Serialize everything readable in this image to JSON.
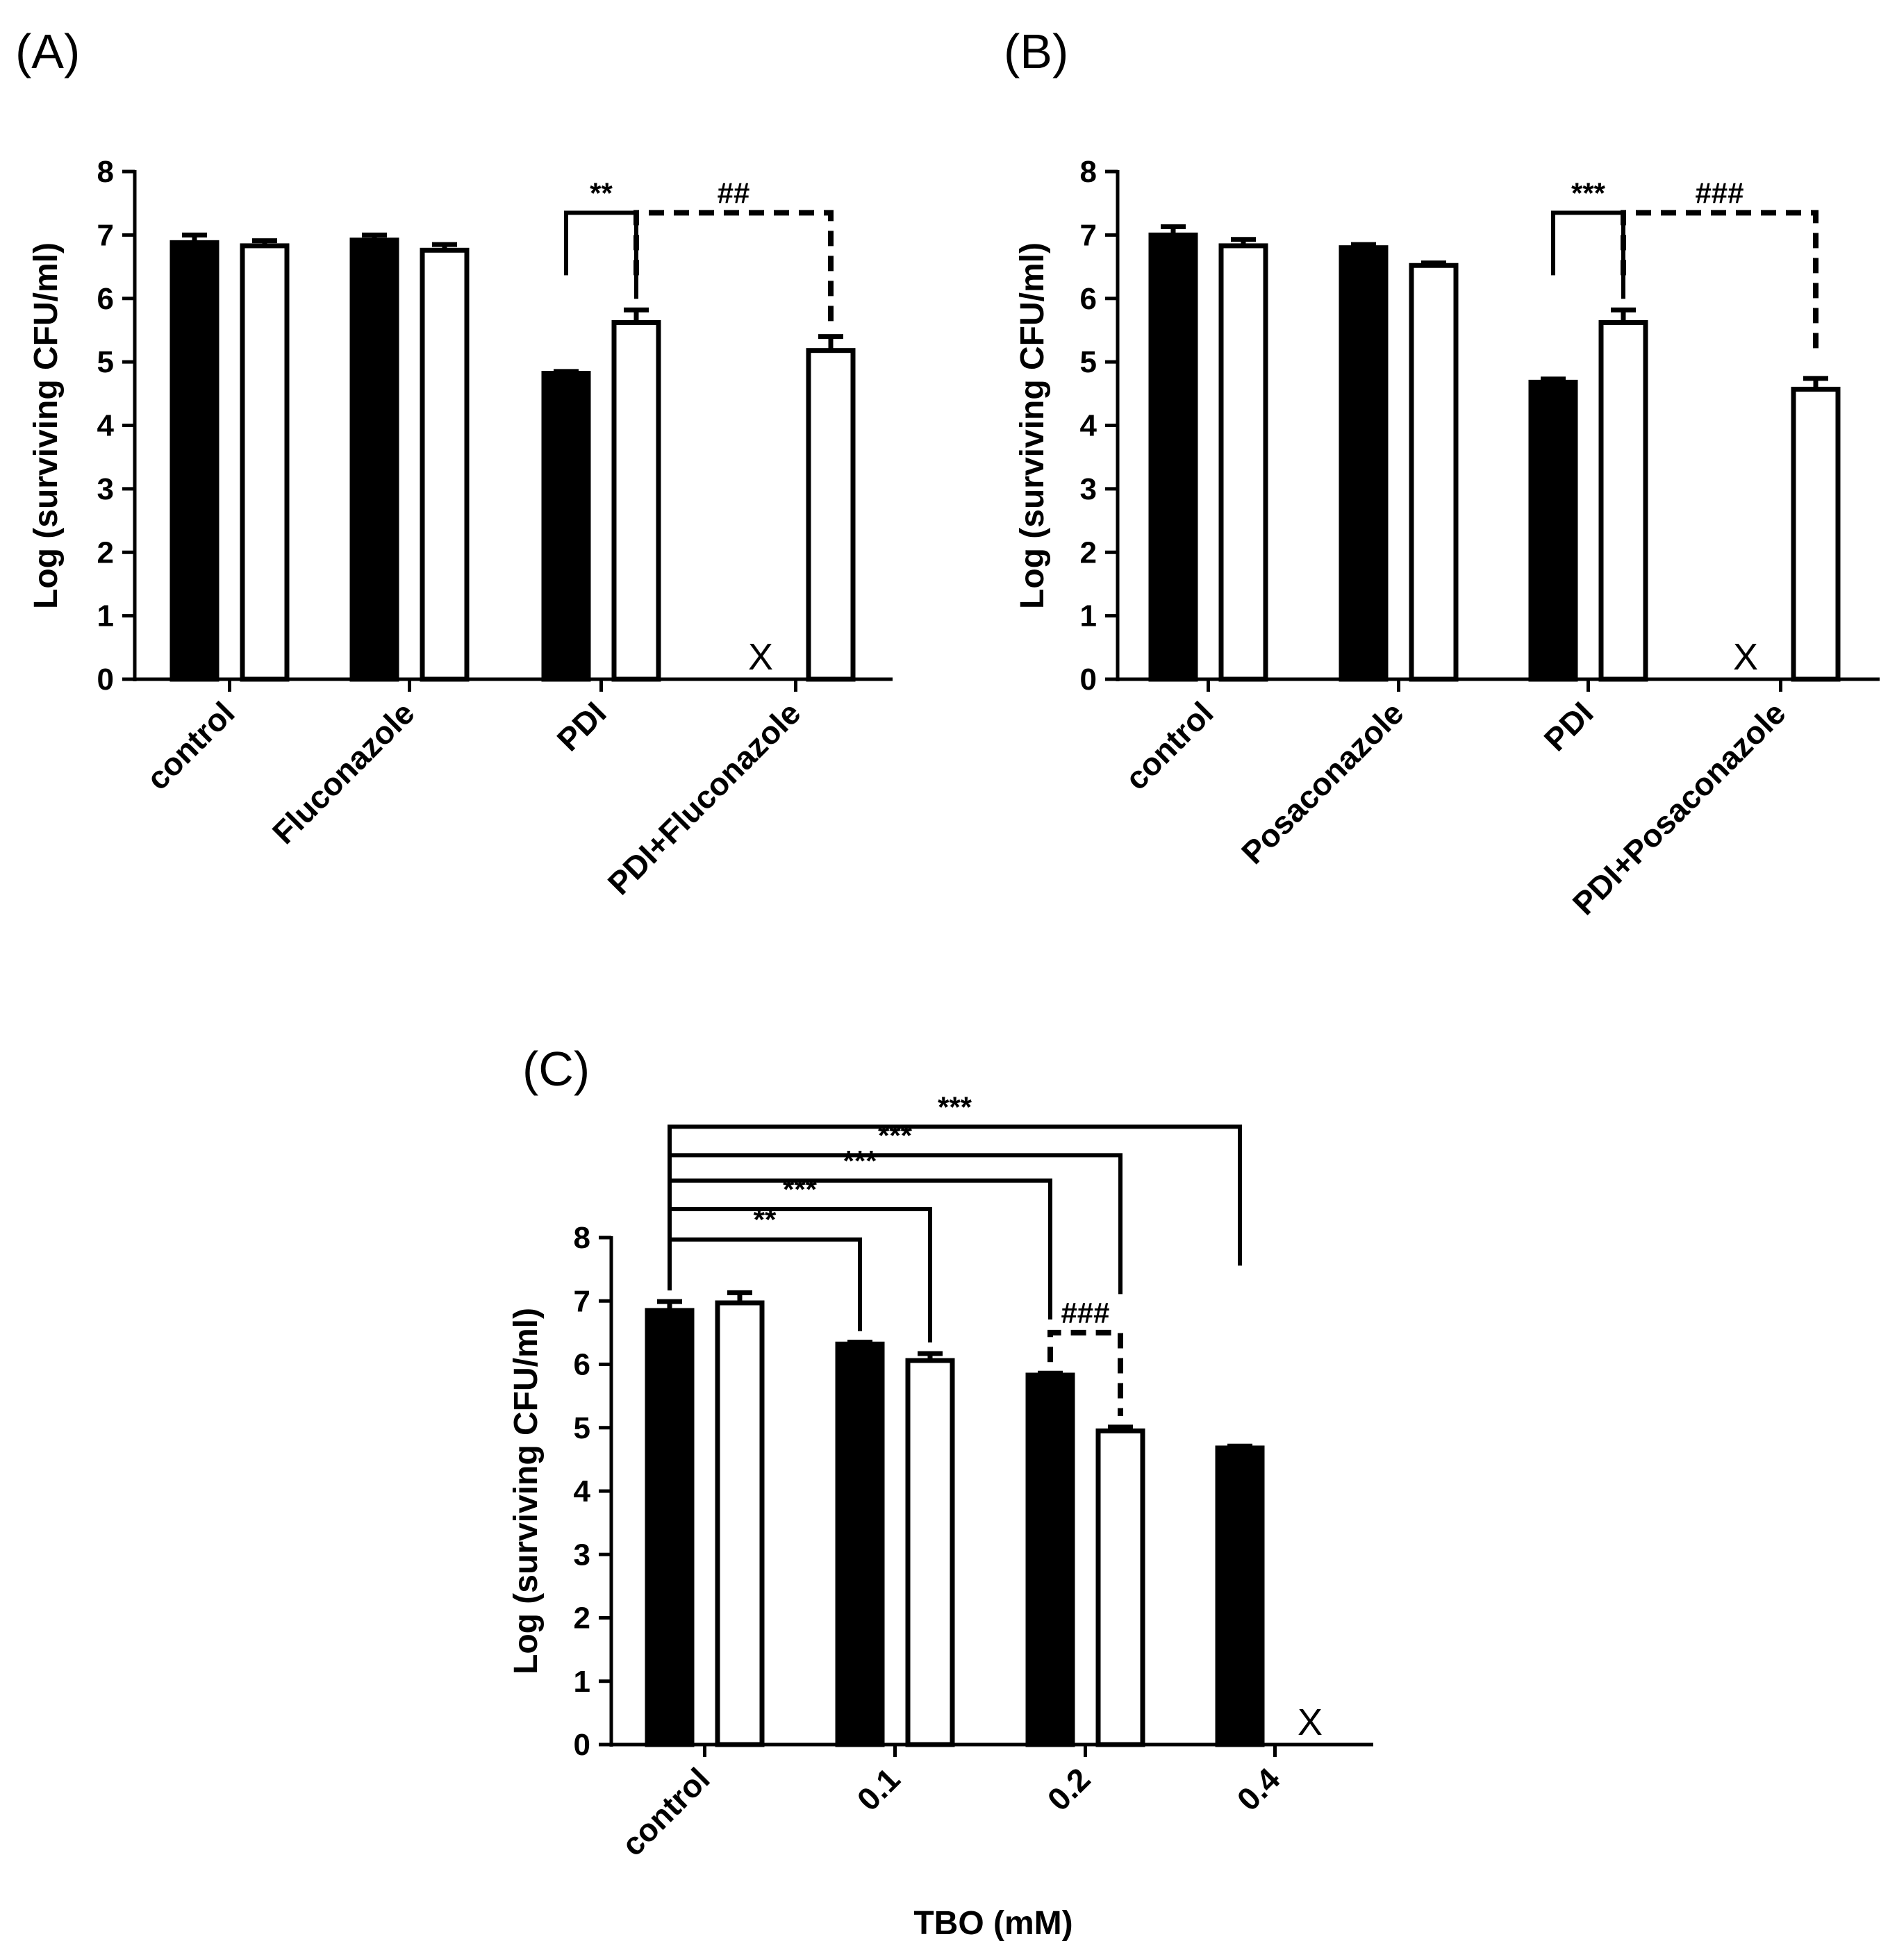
{
  "chart_data": [
    {
      "panel": "(A)",
      "type": "bar",
      "ylabel": "Log (surviving CFU/ml)",
      "xlabel": "",
      "ylim": [
        0,
        8
      ],
      "yticks": [
        "0",
        "1",
        "2",
        "3",
        "4",
        "5",
        "6",
        "7",
        "8"
      ],
      "categories": [
        "control",
        "Fluconazole",
        "PDI",
        "PDI+Fluconazole"
      ],
      "series": [
        {
          "name": "black bars",
          "fill": "#000000",
          "values": [
            6.88,
            6.92,
            4.82,
            null
          ],
          "errors": [
            0.12,
            0.08,
            0.03,
            null
          ]
        },
        {
          "name": "white bars",
          "fill": "#ffffff",
          "values": [
            6.83,
            6.76,
            5.62,
            5.18
          ],
          "errors": [
            0.08,
            0.09,
            0.2,
            0.22
          ]
        }
      ],
      "absent_marks": [
        {
          "category": 3,
          "series": 0,
          "label": "X"
        }
      ],
      "significance": [
        {
          "label": "**",
          "style": "solid",
          "from": [
            2,
            0
          ],
          "to": [
            2,
            1
          ],
          "level": 7.35
        },
        {
          "label": "##",
          "style": "dashed",
          "from": [
            2,
            1
          ],
          "to": [
            3,
            1
          ],
          "level": 7.35
        }
      ]
    },
    {
      "panel": "(B)",
      "type": "bar",
      "ylabel": "Log (surviving CFU/ml)",
      "xlabel": "",
      "ylim": [
        0,
        8
      ],
      "yticks": [
        "0",
        "1",
        "2",
        "3",
        "4",
        "5",
        "6",
        "7",
        "8"
      ],
      "categories": [
        "control",
        "Posaconazole",
        "PDI",
        "PDI+Posaconazole"
      ],
      "series": [
        {
          "name": "black bars",
          "fill": "#000000",
          "values": [
            7.0,
            6.8,
            4.68,
            null
          ],
          "errors": [
            0.13,
            0.05,
            0.05,
            null
          ]
        },
        {
          "name": "white bars",
          "fill": "#ffffff",
          "values": [
            6.83,
            6.52,
            5.62,
            4.57
          ],
          "errors": [
            0.1,
            0.04,
            0.2,
            0.17
          ]
        }
      ],
      "absent_marks": [
        {
          "category": 3,
          "series": 0,
          "label": "X"
        }
      ],
      "significance": [
        {
          "label": "***",
          "style": "solid",
          "from": [
            2,
            0
          ],
          "to": [
            2,
            1
          ],
          "level": 7.35
        },
        {
          "label": "###",
          "style": "dashed",
          "from": [
            2,
            1
          ],
          "to": [
            3,
            1
          ],
          "level": 7.35
        }
      ]
    },
    {
      "panel": "(C)",
      "type": "bar",
      "ylabel": "Log (surviving CFU/ml)",
      "xlabel": "TBO (mM)",
      "ylim": [
        0,
        8
      ],
      "yticks": [
        "0",
        "1",
        "2",
        "3",
        "4",
        "5",
        "6",
        "7",
        "8"
      ],
      "categories": [
        "control",
        "0.1",
        "0.2",
        "0.4"
      ],
      "series": [
        {
          "name": "black bars",
          "fill": "#000000",
          "values": [
            6.85,
            6.32,
            5.83,
            4.68
          ],
          "errors": [
            0.14,
            0.03,
            0.03,
            0.03
          ]
        },
        {
          "name": "white bars",
          "fill": "#ffffff",
          "values": [
            6.97,
            6.06,
            4.95,
            null
          ],
          "errors": [
            0.16,
            0.11,
            0.06,
            null
          ]
        }
      ],
      "absent_marks": [
        {
          "category": 3,
          "series": 1,
          "label": "X"
        }
      ],
      "significance": [
        {
          "label": "**",
          "style": "solid",
          "from": [
            0,
            0
          ],
          "to": [
            1,
            0
          ],
          "level": 7.97
        },
        {
          "label": "***",
          "style": "solid",
          "from": [
            0,
            0
          ],
          "to": [
            1,
            1
          ],
          "level": 8.45
        },
        {
          "label": "***",
          "style": "solid",
          "from": [
            0,
            0
          ],
          "to": [
            2,
            0
          ],
          "level": 8.9
        },
        {
          "label": "***",
          "style": "solid",
          "from": [
            0,
            0
          ],
          "to": [
            2,
            1
          ],
          "level": 9.3
        },
        {
          "label": "***",
          "style": "solid",
          "from": [
            0,
            0
          ],
          "to": [
            3,
            0
          ],
          "level": 9.75
        },
        {
          "label": "###",
          "style": "dashed",
          "from": [
            2,
            0
          ],
          "to": [
            2,
            1
          ],
          "level": 6.5
        }
      ]
    }
  ]
}
